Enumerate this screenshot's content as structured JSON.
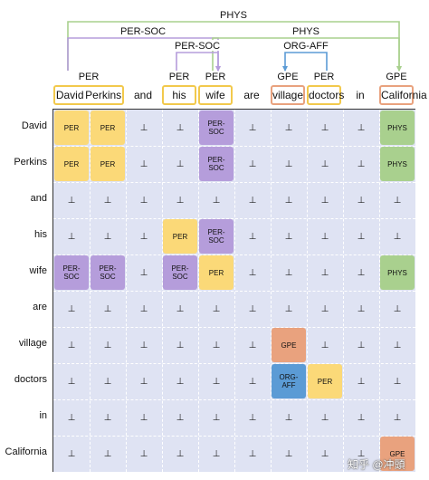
{
  "tokens": [
    "David",
    "Perkins",
    "and",
    "his",
    "wife",
    "are",
    "village",
    "doctors",
    "in",
    "California"
  ],
  "entity_spans": [
    {
      "type": "PER",
      "start": 0,
      "end": 1,
      "color": "#f2c94c"
    },
    {
      "type": "PER",
      "start": 3,
      "end": 3,
      "color": "#f2c94c"
    },
    {
      "type": "PER",
      "start": 4,
      "end": 4,
      "color": "#f2c94c"
    },
    {
      "type": "GPE",
      "start": 6,
      "end": 6,
      "color": "#e9a27e"
    },
    {
      "type": "PER",
      "start": 7,
      "end": 7,
      "color": "#f2c94c"
    },
    {
      "type": "GPE",
      "start": 9,
      "end": 9,
      "color": "#e9a27e"
    }
  ],
  "arcs": [
    {
      "label": "PHYS",
      "from": 0,
      "to": 9,
      "color": "#a9d08e",
      "level": 3
    },
    {
      "label": "PER-SOC",
      "from": 0,
      "to": 4,
      "color": "#b59ddb",
      "level": 2
    },
    {
      "label": "PHYS",
      "from": 4,
      "to": 9,
      "color": "#a9d08e",
      "level": 2
    },
    {
      "label": "PER-SOC",
      "from": 3,
      "to": 4,
      "color": "#b59ddb",
      "level": 1
    },
    {
      "label": "ORG-AFF",
      "from": 7,
      "to": 6,
      "color": "#5b9bd5",
      "level": 1
    }
  ],
  "null_symbol": "⊥",
  "matrix_blocks": [
    {
      "r1": 0,
      "c1": 0,
      "r2": 0,
      "c2": 0,
      "label": "PER",
      "color": "#fbd978"
    },
    {
      "r1": 0,
      "c1": 1,
      "r2": 0,
      "c2": 1,
      "label": "PER",
      "color": "#fbd978"
    },
    {
      "r1": 1,
      "c1": 0,
      "r2": 1,
      "c2": 0,
      "label": "PER",
      "color": "#fbd978"
    },
    {
      "r1": 1,
      "c1": 1,
      "r2": 1,
      "c2": 1,
      "label": "PER",
      "color": "#fbd978"
    },
    {
      "r1": 0,
      "c1": 4,
      "r2": 0,
      "c2": 4,
      "label": "PER-\nSOC",
      "color": "#b59ddb"
    },
    {
      "r1": 1,
      "c1": 4,
      "r2": 1,
      "c2": 4,
      "label": "PER-\nSOC",
      "color": "#b59ddb"
    },
    {
      "r1": 0,
      "c1": 9,
      "r2": 0,
      "c2": 9,
      "label": "PHYS",
      "color": "#a9d08e"
    },
    {
      "r1": 1,
      "c1": 9,
      "r2": 1,
      "c2": 9,
      "label": "PHYS",
      "color": "#a9d08e"
    },
    {
      "r1": 3,
      "c1": 3,
      "r2": 3,
      "c2": 3,
      "label": "PER",
      "color": "#fbd978"
    },
    {
      "r1": 3,
      "c1": 4,
      "r2": 3,
      "c2": 4,
      "label": "PER-\nSOC",
      "color": "#b59ddb"
    },
    {
      "r1": 4,
      "c1": 0,
      "r2": 4,
      "c2": 0,
      "label": "PER-\nSOC",
      "color": "#b59ddb"
    },
    {
      "r1": 4,
      "c1": 1,
      "r2": 4,
      "c2": 1,
      "label": "PER-\nSOC",
      "color": "#b59ddb"
    },
    {
      "r1": 4,
      "c1": 3,
      "r2": 4,
      "c2": 3,
      "label": "PER-\nSOC",
      "color": "#b59ddb"
    },
    {
      "r1": 4,
      "c1": 4,
      "r2": 4,
      "c2": 4,
      "label": "PER",
      "color": "#fbd978"
    },
    {
      "r1": 4,
      "c1": 9,
      "r2": 4,
      "c2": 9,
      "label": "PHYS",
      "color": "#a9d08e"
    },
    {
      "r1": 6,
      "c1": 6,
      "r2": 6,
      "c2": 6,
      "label": "GPE",
      "color": "#e9a27e"
    },
    {
      "r1": 7,
      "c1": 6,
      "r2": 7,
      "c2": 6,
      "label": "ORG-\nAFF",
      "color": "#5b9bd5"
    },
    {
      "r1": 7,
      "c1": 7,
      "r2": 7,
      "c2": 7,
      "label": "PER",
      "color": "#fbd978"
    },
    {
      "r1": 9,
      "c1": 9,
      "r2": 9,
      "c2": 9,
      "label": "GPE",
      "color": "#e9a27e"
    }
  ],
  "watermark": "知乎 @冲頭"
}
